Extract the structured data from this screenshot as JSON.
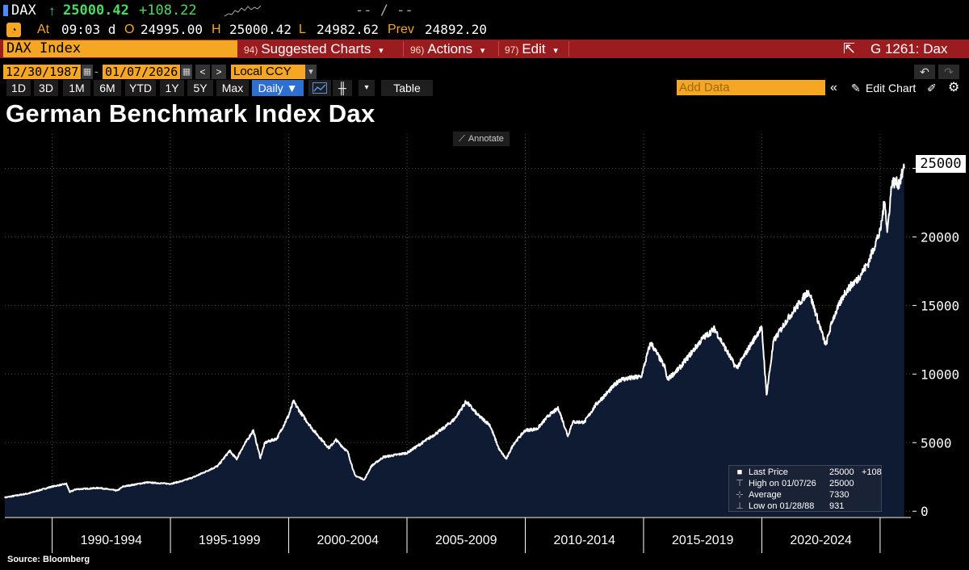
{
  "ticker": {
    "symbol": "DAX",
    "arrow": "↑",
    "last": "25000.42",
    "change": "+108.22",
    "range_dashes": "-- / --"
  },
  "quote": {
    "at_label": "At",
    "time": "09:03 d",
    "open_label": "O",
    "open": "24995.00",
    "high_label": "H",
    "high": "25000.42",
    "low_label": "L",
    "low": "24982.62",
    "prev_label": "Prev",
    "prev": "24892.20"
  },
  "command_bar": {
    "security": "DAX Index",
    "menus": [
      {
        "num": "94)",
        "label": "Suggested Charts",
        "caret": "▾"
      },
      {
        "num": "96)",
        "label": "Actions",
        "caret": "▾"
      },
      {
        "num": "97)",
        "label": "Edit",
        "caret": "▾"
      }
    ],
    "function_code": "G 1261: Dax"
  },
  "range": {
    "start_date": "12/30/1987",
    "end_date": "01/07/2026",
    "prev_arrow": "<",
    "next_arrow": ">",
    "currency": "Local CCY"
  },
  "periods": [
    "1D",
    "3D",
    "1M",
    "6M",
    "YTD",
    "1Y",
    "5Y",
    "Max"
  ],
  "frequency": "Daily ▼",
  "table_label": "Table",
  "add_data_placeholder": "Add Data",
  "edit_chart_label": "Edit Chart",
  "annotate_label": "Annotate",
  "last_price_tag": "25000",
  "legend": {
    "rows": [
      {
        "label": "Last Price",
        "value": "25000",
        "extra": "+108"
      },
      {
        "label": "High on 01/07/26",
        "value": "25000",
        "extra": ""
      },
      {
        "label": "Average",
        "value": "7330",
        "extra": ""
      },
      {
        "label": "Low on 01/28/88",
        "value": "931",
        "extra": ""
      }
    ]
  },
  "source": "Source: Bloomberg",
  "colors": {
    "background": "#000000",
    "accent_orange": "#f5a623",
    "command_bar_red": "#9b1c1f",
    "up_green": "#4cd964",
    "area_fill": "#0f1a33",
    "line": "#ffffff"
  },
  "chart_data": {
    "type": "area",
    "title": "German Benchmark Index Dax",
    "series": [
      {
        "name": "Last Price",
        "x": [
          1988.0,
          1989.0,
          1990.0,
          1990.6,
          1990.75,
          1991.0,
          1992.0,
          1992.75,
          1993.0,
          1994.0,
          1995.0,
          1995.5,
          1996.0,
          1997.0,
          1997.5,
          1997.8,
          1998.0,
          1998.5,
          1998.8,
          1999.0,
          1999.5,
          2000.0,
          2000.2,
          2000.5,
          2001.0,
          2001.7,
          2002.0,
          2002.5,
          2002.8,
          2003.2,
          2003.5,
          2004.0,
          2005.0,
          2006.0,
          2006.5,
          2007.0,
          2007.5,
          2008.0,
          2008.5,
          2008.9,
          2009.2,
          2009.5,
          2010.0,
          2010.5,
          2011.0,
          2011.4,
          2011.8,
          2012.0,
          2012.5,
          2013.0,
          2014.0,
          2014.9,
          2015.3,
          2015.9,
          2016.0,
          2016.5,
          2017.0,
          2017.5,
          2018.0,
          2018.9,
          2019.0,
          2019.9,
          2020.0,
          2020.2,
          2020.5,
          2021.0,
          2021.9,
          2022.0,
          2022.7,
          2023.0,
          2023.5,
          2023.9,
          2024.0,
          2024.5,
          2024.9,
          2025.0,
          2025.2,
          2025.3,
          2025.5,
          2025.8,
          2026.02
        ],
        "y": [
          1000,
          1300,
          1800,
          2000,
          1400,
          1600,
          1700,
          1500,
          1800,
          2100,
          2000,
          2200,
          2500,
          3300,
          4400,
          3800,
          4500,
          5900,
          3900,
          5000,
          5300,
          7000,
          8000,
          7200,
          6000,
          4600,
          5200,
          4300,
          2600,
          2300,
          3300,
          3950,
          4250,
          5400,
          6000,
          6700,
          8000,
          7000,
          6300,
          4500,
          3800,
          4900,
          5900,
          6000,
          7000,
          7500,
          5500,
          6500,
          6500,
          7800,
          9600,
          9800,
          12300,
          10500,
          9600,
          10400,
          11500,
          12600,
          13300,
          10500,
          10600,
          13200,
          13300,
          8500,
          12400,
          13800,
          15900,
          16000,
          12100,
          14000,
          15900,
          16700,
          16800,
          18100,
          20000,
          20300,
          22800,
          20300,
          24000,
          23900,
          25000
        ]
      }
    ],
    "x_ticks": [
      "1990-1994",
      "1995-1999",
      "2000-2004",
      "2005-2009",
      "2010-2014",
      "2015-2019",
      "2020-2024"
    ],
    "x_tick_ranges": [
      [
        1990,
        1995
      ],
      [
        1995,
        2000
      ],
      [
        2000,
        2005
      ],
      [
        2005,
        2010
      ],
      [
        2010,
        2015
      ],
      [
        2015,
        2020
      ],
      [
        2020,
        2025
      ]
    ],
    "y_ticks": [
      0,
      5000,
      10000,
      15000,
      20000,
      25000
    ],
    "xlim": [
      1988.0,
      2026.3
    ],
    "ylim": [
      -400,
      27500
    ],
    "grid": true
  }
}
